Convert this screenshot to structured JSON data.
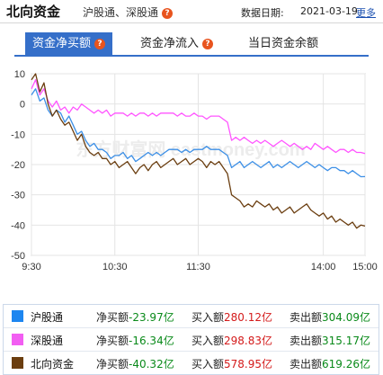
{
  "header": {
    "title": "北向资金",
    "subtitle": "沪股通、深股通",
    "date_label": "数据日期:",
    "date_value": "2021-03-19",
    "more_label": "更多"
  },
  "tabs": [
    {
      "label": "资金净买额",
      "active": true
    },
    {
      "label": "资金净流入",
      "active": false
    },
    {
      "label": "当日资金余额",
      "active": false
    }
  ],
  "watermark": "东方财富网 eastmoney.com",
  "chart_data": {
    "type": "line",
    "x_ticks": [
      "9:30",
      "10:30",
      "11:30",
      "14:00",
      "15:00"
    ],
    "y_ticks": [
      10,
      0,
      -10,
      -20,
      -30,
      -40,
      -50
    ],
    "ylim": [
      -50,
      10
    ],
    "grid": true,
    "series": [
      {
        "name": "沪股通",
        "color": "#3c8fe6",
        "x": [
          0,
          3,
          6,
          9,
          12,
          15,
          18,
          21,
          24,
          27,
          30,
          33,
          36,
          39,
          42,
          45,
          48,
          51,
          54,
          57,
          60,
          63,
          66,
          69,
          72,
          75,
          78,
          81,
          84,
          87,
          90,
          93,
          96,
          99,
          102,
          105,
          108,
          111,
          114,
          117,
          120,
          123,
          126,
          129,
          132,
          135,
          138,
          141,
          144,
          147,
          150,
          153,
          156,
          159,
          162,
          165,
          168,
          171,
          174,
          177,
          180,
          183,
          186,
          189,
          192,
          195,
          198,
          201,
          204,
          207,
          210,
          213,
          216,
          219,
          222,
          225,
          228,
          231,
          234,
          237,
          240
        ],
        "y": [
          3,
          5,
          1,
          2,
          -2,
          -4,
          -2,
          -3,
          -6,
          -4,
          -7,
          -10,
          -9,
          -12,
          -14,
          -13,
          -15,
          -15,
          -16,
          -18,
          -17,
          -17,
          -16,
          -18,
          -17,
          -19,
          -18,
          -17,
          -16,
          -17,
          -16,
          -17,
          -16,
          -15,
          -15,
          -15,
          -16,
          -15,
          -16,
          -15,
          -15,
          -15,
          -14,
          -15,
          -15,
          -15,
          -16,
          -17,
          -21,
          -20,
          -19,
          -21,
          -20,
          -19,
          -20,
          -21,
          -20,
          -19,
          -21,
          -20,
          -21,
          -20,
          -19,
          -20,
          -21,
          -20,
          -19,
          -20,
          -21,
          -20,
          -21,
          -22,
          -21,
          -21,
          -22,
          -22,
          -23,
          -22,
          -23,
          -24,
          -23.97
        ]
      },
      {
        "name": "深股通",
        "color": "#ff55ff",
        "x": [
          0,
          3,
          6,
          9,
          12,
          15,
          18,
          21,
          24,
          27,
          30,
          33,
          36,
          39,
          42,
          45,
          48,
          51,
          54,
          57,
          60,
          63,
          66,
          69,
          72,
          75,
          78,
          81,
          84,
          87,
          90,
          93,
          96,
          99,
          102,
          105,
          108,
          111,
          114,
          117,
          120,
          123,
          126,
          129,
          132,
          135,
          138,
          141,
          144,
          147,
          150,
          153,
          156,
          159,
          162,
          165,
          168,
          171,
          174,
          177,
          180,
          183,
          186,
          189,
          192,
          195,
          198,
          201,
          204,
          207,
          210,
          213,
          216,
          219,
          222,
          225,
          228,
          231,
          234,
          237,
          240
        ],
        "y": [
          5,
          8,
          3,
          5,
          1,
          -1,
          1,
          -2,
          -1,
          -3,
          -1,
          -2,
          0,
          -1,
          -2,
          -3,
          -2,
          -3,
          -2,
          -4,
          -3,
          -3,
          -3,
          -4,
          -3,
          -4,
          -3,
          -3,
          -4,
          -3,
          -4,
          -3,
          -3,
          -3,
          -3,
          -4,
          -3,
          -4,
          -4,
          -3,
          -4,
          -4,
          -5,
          -4,
          -4,
          -4,
          -5,
          -6,
          -12,
          -11,
          -12,
          -11,
          -12,
          -13,
          -12,
          -13,
          -12,
          -13,
          -14,
          -13,
          -12,
          -13,
          -14,
          -13,
          -14,
          -15,
          -14,
          -15,
          -13,
          -14,
          -15,
          -14,
          -15,
          -16,
          -15,
          -15,
          -16,
          -15,
          -16,
          -16,
          -16.34
        ]
      },
      {
        "name": "北向资金",
        "color": "#6b3e10",
        "x": [
          0,
          3,
          6,
          9,
          12,
          15,
          18,
          21,
          24,
          27,
          30,
          33,
          36,
          39,
          42,
          45,
          48,
          51,
          54,
          57,
          60,
          63,
          66,
          69,
          72,
          75,
          78,
          81,
          84,
          87,
          90,
          93,
          96,
          99,
          102,
          105,
          108,
          111,
          114,
          117,
          120,
          123,
          126,
          129,
          132,
          135,
          138,
          141,
          144,
          147,
          150,
          153,
          156,
          159,
          162,
          165,
          168,
          171,
          174,
          177,
          180,
          183,
          186,
          189,
          192,
          195,
          198,
          201,
          204,
          207,
          210,
          213,
          216,
          219,
          222,
          225,
          228,
          231,
          234,
          237,
          240
        ],
        "y": [
          8,
          10,
          4,
          7,
          0,
          -4,
          -2,
          -5,
          -7,
          -6,
          -9,
          -12,
          -10,
          -14,
          -16,
          -17,
          -16,
          -18,
          -18,
          -20,
          -19,
          -21,
          -20,
          -19,
          -21,
          -23,
          -21,
          -20,
          -22,
          -20,
          -19,
          -21,
          -20,
          -19,
          -18,
          -20,
          -19,
          -18,
          -20,
          -19,
          -18,
          -19,
          -21,
          -19,
          -20,
          -19,
          -21,
          -23,
          -30,
          -31,
          -32,
          -34,
          -33,
          -34,
          -32,
          -33,
          -34,
          -33,
          -35,
          -34,
          -36,
          -35,
          -34,
          -36,
          -35,
          -34,
          -33,
          -35,
          -36,
          -37,
          -36,
          -38,
          -37,
          -39,
          -38,
          -39,
          -40,
          -39,
          -41,
          -40,
          -40.32
        ]
      }
    ]
  },
  "legend": [
    {
      "name": "沪股通",
      "color": "#1d86f0",
      "net_label": "净买额",
      "net_value": "-23.97亿",
      "buy_label": "买入额",
      "buy_value": "280.12亿",
      "sell_label": "卖出额",
      "sell_value": "304.09亿"
    },
    {
      "name": "深股通",
      "color": "#f25ef2",
      "net_label": "净买额",
      "net_value": "-16.34亿",
      "buy_label": "买入额",
      "buy_value": "298.83亿",
      "sell_label": "卖出额",
      "sell_value": "315.17亿"
    },
    {
      "name": "北向资金",
      "color": "#6b3e10",
      "net_label": "净买额",
      "net_value": "-40.32亿",
      "buy_label": "买入额",
      "buy_value": "578.95亿",
      "sell_label": "卖出额",
      "sell_value": "619.26亿"
    }
  ]
}
